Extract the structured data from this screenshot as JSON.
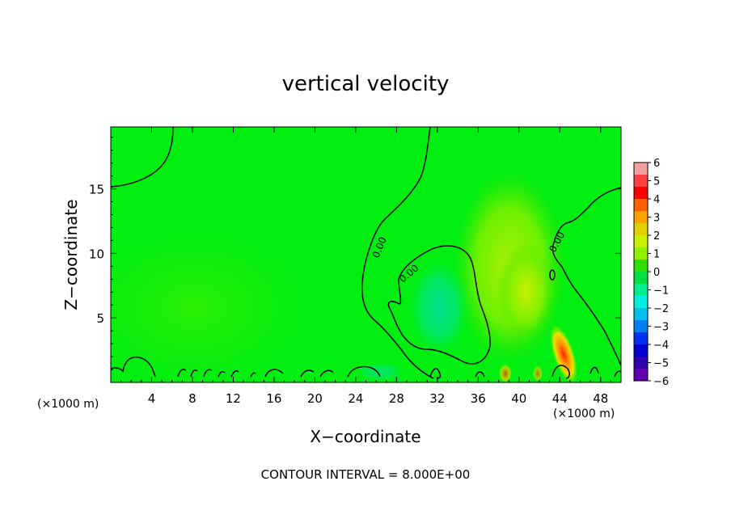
{
  "chart_data": {
    "type": "heatmap",
    "title": "vertical velocity",
    "xlabel": "X−coordinate",
    "ylabel": "Z−coordinate",
    "x_unit_left": "(×1000 m)",
    "x_unit_right": "(×1000 m)",
    "xlim": [
      0,
      50
    ],
    "ylim": [
      0,
      19.8
    ],
    "x_ticks": [
      4,
      8,
      12,
      16,
      20,
      24,
      28,
      32,
      36,
      40,
      44,
      48
    ],
    "y_ticks": [
      5,
      10,
      15
    ],
    "colorbar": {
      "ticks": [
        "6",
        "5",
        "4",
        "3",
        "2",
        "1",
        "0",
        "−1",
        "−2",
        "−3",
        "−4",
        "−5",
        "−6"
      ],
      "colors": [
        "#f0a0a0",
        "#ff4040",
        "#ff0000",
        "#ff6000",
        "#ffa000",
        "#e0d000",
        "#c8f000",
        "#90f000",
        "#30e000",
        "#00e040",
        "#00f090",
        "#00f0e0",
        "#00c0f0",
        "#0080f0",
        "#0030f0",
        "#0000d0",
        "#3000b0",
        "#6000b0"
      ]
    },
    "features": [
      {
        "kind": "updraft",
        "x": 44.8,
        "z": 2.5,
        "w": 5.0
      },
      {
        "kind": "updraft",
        "x": 40,
        "z": 7.5,
        "w": 1.5
      },
      {
        "kind": "downdraft",
        "x": 32.5,
        "z": 5.5,
        "w": -1.5
      }
    ],
    "contour_labels": [
      "0.00",
      "0.00",
      "0.00"
    ],
    "contour_interval_text": "CONTOUR INTERVAL = 8.000E+00"
  },
  "colors": {
    "background_field": "#00ee10",
    "contour_line": "#000000"
  }
}
